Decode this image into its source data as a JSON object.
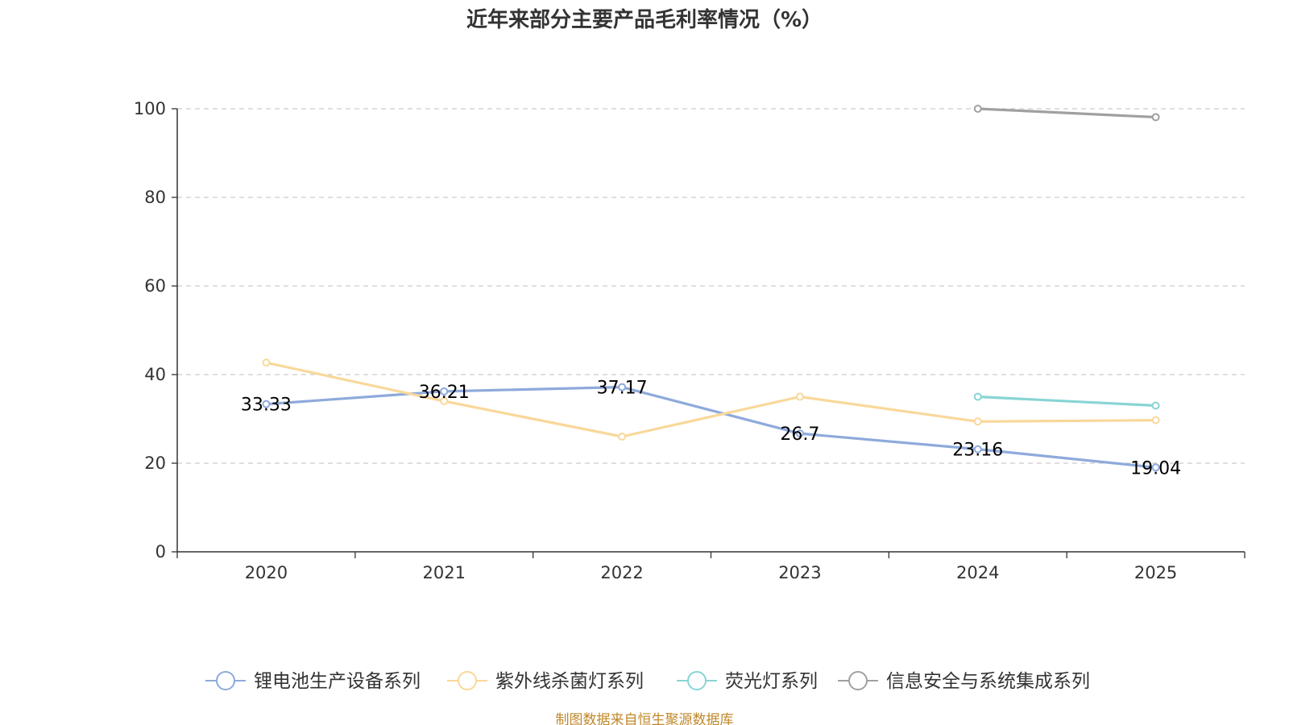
{
  "chart_data": {
    "type": "line",
    "title": "近年来部分主要产品毛利率情况（%）",
    "categories": [
      "2020",
      "2021",
      "2022",
      "2023",
      "2024",
      "2025"
    ],
    "ylim": [
      0,
      100
    ],
    "yticks": [
      "0",
      "20",
      "40",
      "60",
      "80",
      "100"
    ],
    "grid": true,
    "legend_position": "bottom",
    "series": [
      {
        "name": "锂电池生产设备系列",
        "color": "#8eaadb",
        "values": [
          33.33,
          36.21,
          37.17,
          26.7,
          23.16,
          19.04
        ],
        "labels": [
          "33.33",
          "36.21",
          "37.17",
          "26.7",
          "23.16",
          "19.04"
        ]
      },
      {
        "name": "紫外线杀菌灯系列",
        "color": "#f9d89a",
        "values": [
          42.7,
          34.0,
          26.0,
          35.0,
          29.4,
          29.7
        ],
        "labels": []
      },
      {
        "name": "荧光灯系列",
        "color": "#88d4d4",
        "values": [
          null,
          null,
          null,
          null,
          35.0,
          33.0
        ],
        "labels": []
      },
      {
        "name": "信息安全与系统集成系列",
        "color": "#a0a0a0",
        "values": [
          null,
          null,
          null,
          null,
          100.0,
          98.1
        ],
        "labels": []
      }
    ]
  },
  "source_note": "制图数据来自恒生聚源数据库"
}
